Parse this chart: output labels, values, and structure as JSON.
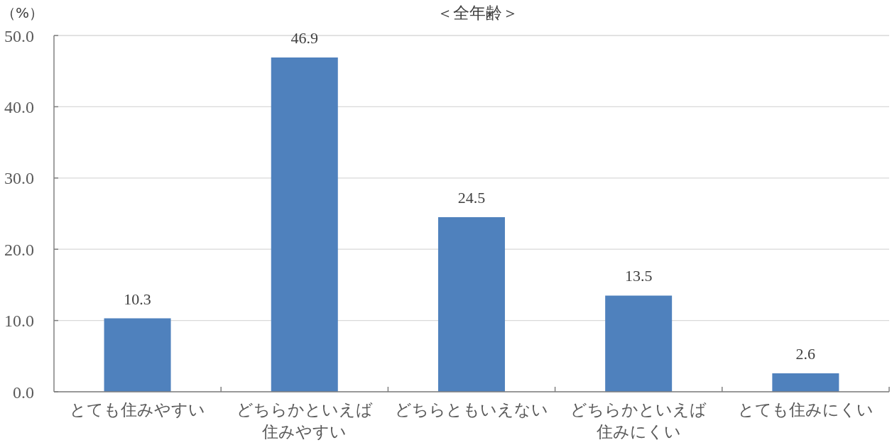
{
  "chart_data": {
    "type": "bar",
    "title": "＜全年齢＞",
    "ylabel": "（%）",
    "categories": [
      "とても住みやすい",
      "どちらかといえば住みやすい",
      "どちらともいえない",
      "どちらかといえば住みにくい",
      "とても住みにくい"
    ],
    "values": [
      10.3,
      46.9,
      24.5,
      13.5,
      2.6
    ],
    "color": "#4f81bd",
    "ylim": [
      0,
      50
    ],
    "yticks": [
      {
        "value": 0,
        "label": "0.0"
      },
      {
        "value": 10,
        "label": "10.0"
      },
      {
        "value": 20,
        "label": "20.0"
      },
      {
        "value": 30,
        "label": "30.0"
      },
      {
        "value": 40,
        "label": "40.0"
      },
      {
        "value": 50,
        "label": "50.0"
      }
    ],
    "grid": "y",
    "data_labels": true
  }
}
